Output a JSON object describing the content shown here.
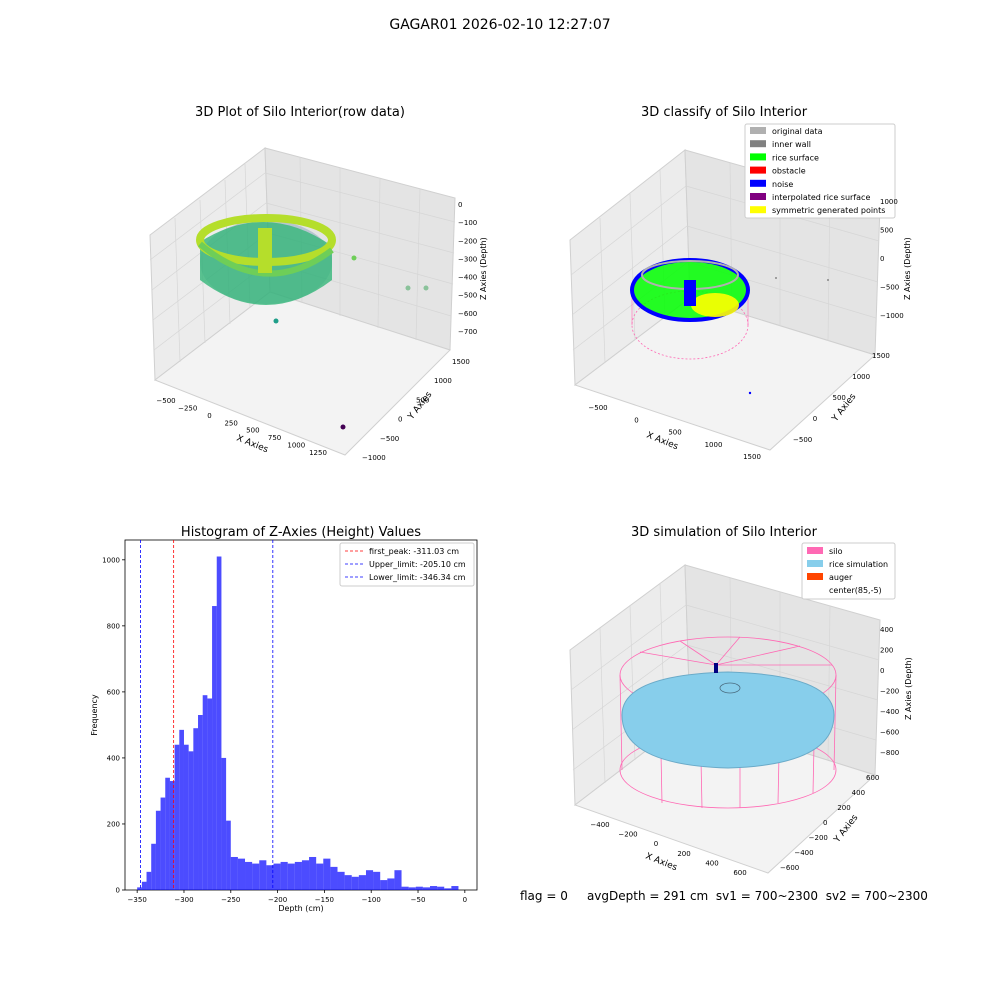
{
  "figure": {
    "title": "GAGAR01 2026-02-10 12:27:07",
    "status_line": {
      "flag": "flag = 0",
      "avg_depth": "avgDepth = 291 cm",
      "sv1": "sv1 = 700~2300",
      "sv2": "sv2 = 700~2300"
    }
  },
  "panels": {
    "raw": {
      "title": "3D Plot of Silo Interior(row data)",
      "x_label": "X Axies",
      "y_label": "Y Axies",
      "z_label": "Z Axies (Depth)",
      "x_ticks": [
        "−500",
        "−250",
        "0",
        "250",
        "500",
        "750",
        "1000",
        "1250"
      ],
      "y_ticks": [
        "−1000",
        "−500",
        "0",
        "500",
        "1000",
        "1500"
      ],
      "z_ticks": [
        "0",
        "−100",
        "−200",
        "−300",
        "−400",
        "−500",
        "−600",
        "−700"
      ]
    },
    "classify": {
      "title": "3D classify of Silo Interior",
      "x_label": "X Axies",
      "y_label": "Y Axies",
      "z_label": "Z Axies (Depth)",
      "x_ticks": [
        "−500",
        "0",
        "500",
        "1000",
        "1500"
      ],
      "y_ticks": [
        "−500",
        "0",
        "500",
        "1000",
        "1500"
      ],
      "z_ticks": [
        "1000",
        "500",
        "0",
        "−500",
        "−1000"
      ],
      "legend": [
        {
          "label": "original data",
          "color": "#b0b0b0"
        },
        {
          "label": "inner wall",
          "color": "#808080"
        },
        {
          "label": "rice surface",
          "color": "#00ff00"
        },
        {
          "label": "obstacle",
          "color": "#ff0000"
        },
        {
          "label": "noise",
          "color": "#0000ff"
        },
        {
          "label": "interpolated rice surface",
          "color": "#800080"
        },
        {
          "label": "symmetric generated points",
          "color": "#ffff00"
        }
      ]
    },
    "simulation": {
      "title": "3D simulation of Silo Interior",
      "x_label": "X Axies",
      "y_label": "Y Axies",
      "z_label": "Z Axies (Depth)",
      "x_ticks": [
        "−400",
        "−200",
        "0",
        "200",
        "400",
        "600"
      ],
      "y_ticks": [
        "−600",
        "−400",
        "−200",
        "0",
        "200",
        "400",
        "600"
      ],
      "z_ticks": [
        "400",
        "200",
        "0",
        "−200",
        "−400",
        "−600",
        "−800"
      ],
      "legend": [
        {
          "label": "silo",
          "color": "#ff69b4"
        },
        {
          "label": "rice simulation",
          "color": "#87ceeb"
        },
        {
          "label": "auger",
          "color": "#ff4500"
        },
        {
          "label": "center(85,-5)",
          "color": "#ffffff"
        }
      ]
    }
  },
  "chart_data": {
    "type": "bar",
    "title": "Histogram of Z-Axies (Height) Values",
    "xlabel": "Depth (cm)",
    "ylabel": "Frequency",
    "xlim": [
      -363,
      13
    ],
    "ylim": [
      0,
      1060
    ],
    "x_ticks": [
      -350,
      -300,
      -250,
      -200,
      -150,
      -100,
      -50,
      0
    ],
    "y_ticks": [
      0,
      200,
      400,
      600,
      800,
      1000
    ],
    "bar_color": "#0000ff",
    "bar_alpha": 0.7,
    "bins": [
      [
        -350,
        -345,
        8
      ],
      [
        -345,
        -340,
        25
      ],
      [
        -340,
        -335,
        55
      ],
      [
        -335,
        -330,
        140
      ],
      [
        -330,
        -325,
        240
      ],
      [
        -325,
        -320,
        280
      ],
      [
        -320,
        -315,
        340
      ],
      [
        -315,
        -310,
        330
      ],
      [
        -310,
        -305,
        440
      ],
      [
        -305,
        -300,
        485
      ],
      [
        -300,
        -295,
        440
      ],
      [
        -295,
        -290,
        420
      ],
      [
        -290,
        -285,
        490
      ],
      [
        -285,
        -280,
        530
      ],
      [
        -280,
        -275,
        590
      ],
      [
        -275,
        -270,
        580
      ],
      [
        -270,
        -265,
        860
      ],
      [
        -265,
        -260,
        1010
      ],
      [
        -260,
        -255,
        400
      ],
      [
        -255,
        -250,
        210
      ],
      [
        -250,
        -245,
        100
      ],
      [
        -245,
        -240,
        95
      ],
      [
        -240,
        -235,
        85
      ],
      [
        -235,
        -230,
        80
      ],
      [
        -230,
        -225,
        90
      ],
      [
        -225,
        -220,
        75
      ],
      [
        -220,
        -215,
        80
      ],
      [
        -215,
        -210,
        85
      ],
      [
        -210,
        -205,
        80
      ],
      [
        -205,
        -200,
        85
      ],
      [
        -200,
        -195,
        90
      ],
      [
        -195,
        -190,
        100
      ],
      [
        -190,
        -185,
        80
      ],
      [
        -185,
        -180,
        95
      ],
      [
        -180,
        -175,
        70
      ],
      [
        -175,
        -170,
        55
      ],
      [
        -170,
        -165,
        45
      ],
      [
        -165,
        -160,
        40
      ],
      [
        -160,
        -155,
        45
      ],
      [
        -155,
        -150,
        60
      ],
      [
        -150,
        -145,
        55
      ],
      [
        -145,
        -140,
        30
      ],
      [
        -140,
        -135,
        35
      ],
      [
        -135,
        -130,
        60
      ],
      [
        -130,
        -125,
        10
      ],
      [
        -125,
        -120,
        8
      ],
      [
        -120,
        -115,
        10
      ],
      [
        -115,
        -110,
        8
      ],
      [
        -110,
        -105,
        12
      ],
      [
        -105,
        -100,
        10
      ],
      [
        -100,
        -95,
        5
      ],
      [
        -95,
        -90,
        12
      ]
    ],
    "bins_note_offset": 115,
    "vlines": [
      {
        "label": "first_peak: -311.03 cm",
        "x": -311.03,
        "color": "#ff0000"
      },
      {
        "label": "Upper_limit: -205.10 cm",
        "x": -205.1,
        "color": "#0000ff"
      },
      {
        "label": "Lower_limit: -346.34 cm",
        "x": -346.34,
        "color": "#0000ff"
      }
    ]
  }
}
